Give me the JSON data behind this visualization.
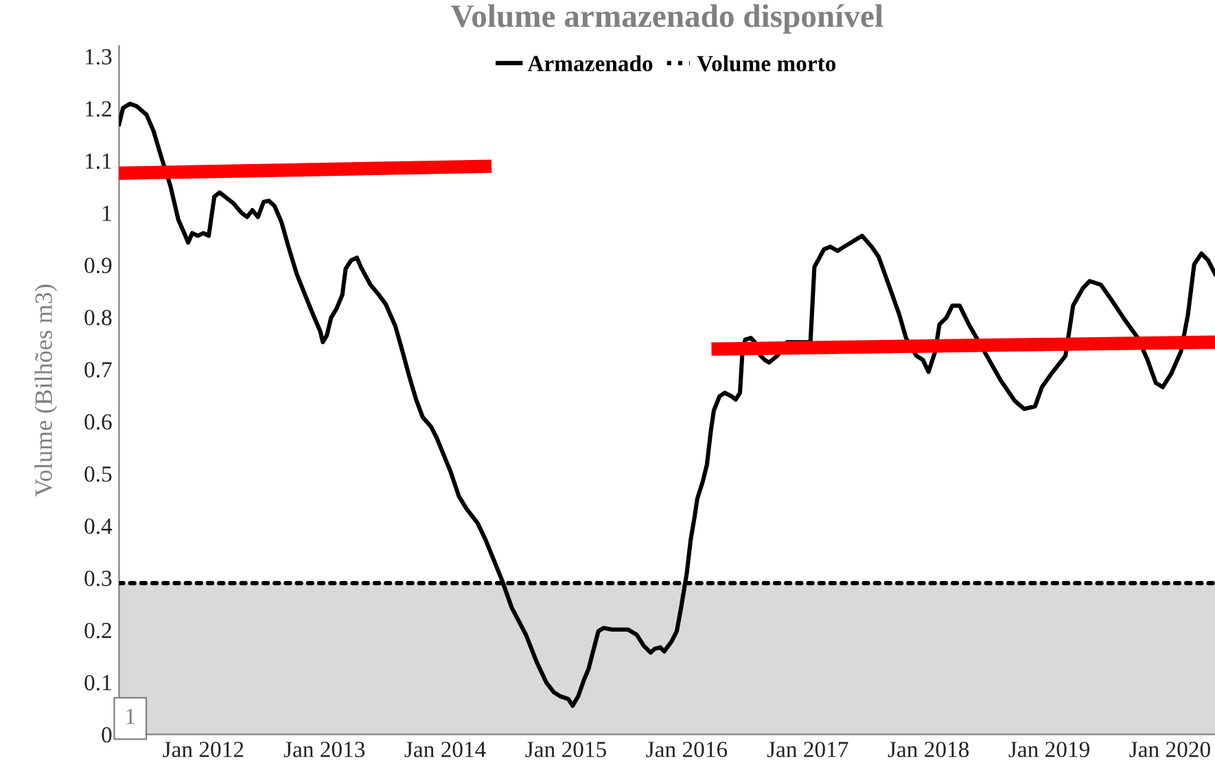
{
  "chart_data": {
    "type": "line",
    "title": "Volume armazenado disponível",
    "ylabel": "Volume (Bilhões m3)",
    "xlim": [
      "2011-04-21",
      "2020-05-16"
    ],
    "ylim": [
      0,
      1.32
    ],
    "xticks": [
      {
        "value": "2012-01-01",
        "label": "Jan 2012"
      },
      {
        "value": "2013-01-01",
        "label": "Jan 2013"
      },
      {
        "value": "2014-01-01",
        "label": "Jan 2014"
      },
      {
        "value": "2015-01-01",
        "label": "Jan 2015"
      },
      {
        "value": "2016-01-01",
        "label": "Jan 2016"
      },
      {
        "value": "2017-01-01",
        "label": "Jan 2017"
      },
      {
        "value": "2018-01-01",
        "label": "Jan 2018"
      },
      {
        "value": "2019-01-01",
        "label": "Jan 2019"
      },
      {
        "value": "2020-01-01",
        "label": "Jan 2020"
      }
    ],
    "yticks": [
      0,
      0.1,
      0.2,
      0.3,
      0.4,
      0.5,
      0.6,
      0.7,
      0.8,
      0.9,
      1,
      1.1,
      1.2,
      1.3
    ],
    "grid": false,
    "legend": "top",
    "marker": "none",
    "bands": [
      {
        "axis": "y",
        "from": 0,
        "to": 0.29,
        "color": "#d9d9d9"
      }
    ],
    "annotations": [
      "1"
    ],
    "series": [
      {
        "name": "Armazenado",
        "color": "#000000",
        "line_style": "solid",
        "x": [
          "2011-04-21",
          "2011-05-03",
          "2011-05-24",
          "2011-06-14",
          "2011-07-13",
          "2011-08-03",
          "2011-08-28",
          "2011-09-23",
          "2011-10-17",
          "2011-11-04",
          "2011-11-16",
          "2011-11-28",
          "2011-12-15",
          "2012-01-01",
          "2012-01-17",
          "2012-02-03",
          "2012-02-19",
          "2012-03-06",
          "2012-04-01",
          "2012-04-25",
          "2012-05-12",
          "2012-05-28",
          "2012-06-14",
          "2012-07-01",
          "2012-07-17",
          "2012-08-03",
          "2012-08-24",
          "2012-09-14",
          "2012-10-09",
          "2012-11-03",
          "2012-11-28",
          "2012-12-19",
          "2012-12-27",
          "2013-01-08",
          "2013-01-21",
          "2013-02-07",
          "2013-02-24",
          "2013-03-06",
          "2013-03-23",
          "2013-04-09",
          "2013-04-21",
          "2013-05-20",
          "2013-06-14",
          "2013-07-05",
          "2013-08-03",
          "2013-08-24",
          "2013-09-14",
          "2013-10-05",
          "2013-10-25",
          "2013-11-19",
          "2013-12-06",
          "2013-12-28",
          "2014-01-17",
          "2014-02-11",
          "2014-03-06",
          "2014-04-09",
          "2014-05-03",
          "2014-05-28",
          "2014-06-22",
          "2014-07-21",
          "2014-09-02",
          "2014-10-05",
          "2014-11-03",
          "2014-11-25",
          "2014-12-15",
          "2015-01-08",
          "2015-01-21",
          "2015-02-07",
          "2015-02-24",
          "2015-03-10",
          "2015-03-23",
          "2015-04-09",
          "2015-04-25",
          "2015-05-20",
          "2015-06-10",
          "2015-07-08",
          "2015-08-03",
          "2015-08-24",
          "2015-09-14",
          "2015-09-26",
          "2015-10-13",
          "2015-10-25",
          "2015-11-16",
          "2015-12-02",
          "2015-12-15",
          "2016-01-01",
          "2016-01-13",
          "2016-01-25",
          "2016-02-02",
          "2016-02-19",
          "2016-03-02",
          "2016-03-14",
          "2016-03-23",
          "2016-04-09",
          "2016-04-25",
          "2016-05-16",
          "2016-05-28",
          "2016-06-10",
          "2016-06-18",
          "2016-06-26",
          "2016-07-13",
          "2016-07-25",
          "2016-08-11",
          "2016-08-24",
          "2016-09-06",
          "2016-10-01",
          "2016-10-30",
          "2017-01-09",
          "2017-01-21",
          "2017-02-19",
          "2017-03-10",
          "2017-04-01",
          "2017-04-21",
          "2017-05-12",
          "2017-06-14",
          "2017-07-13",
          "2017-08-03",
          "2017-09-06",
          "2017-10-05",
          "2017-10-25",
          "2017-11-25",
          "2017-12-15",
          "2018-01-01",
          "2018-01-21",
          "2018-02-03",
          "2018-02-24",
          "2018-03-14",
          "2018-04-05",
          "2018-05-03",
          "2018-06-26",
          "2018-08-07",
          "2018-09-18",
          "2018-10-17",
          "2018-11-19",
          "2018-12-10",
          "2019-01-08",
          "2019-02-19",
          "2019-03-14",
          "2019-04-13",
          "2019-05-03",
          "2019-06-06",
          "2019-07-05",
          "2019-08-16",
          "2019-09-26",
          "2019-10-25",
          "2019-11-19",
          "2019-12-10",
          "2020-01-05",
          "2020-02-03",
          "2020-02-24",
          "2020-03-14",
          "2020-04-05",
          "2020-04-25",
          "2020-05-16"
        ],
        "values": [
          1.17,
          1.201,
          1.209,
          1.204,
          1.188,
          1.157,
          1.104,
          1.052,
          0.987,
          0.961,
          0.943,
          0.961,
          0.956,
          0.961,
          0.956,
          1.031,
          1.039,
          1.031,
          1.018,
          1.0,
          0.992,
          1.005,
          0.992,
          1.021,
          1.023,
          1.013,
          0.982,
          0.935,
          0.883,
          0.843,
          0.804,
          0.773,
          0.752,
          0.765,
          0.799,
          0.817,
          0.843,
          0.893,
          0.909,
          0.914,
          0.896,
          0.862,
          0.843,
          0.825,
          0.783,
          0.736,
          0.687,
          0.642,
          0.608,
          0.59,
          0.569,
          0.535,
          0.504,
          0.457,
          0.433,
          0.405,
          0.373,
          0.334,
          0.295,
          0.243,
          0.191,
          0.138,
          0.099,
          0.081,
          0.073,
          0.068,
          0.055,
          0.073,
          0.104,
          0.125,
          0.157,
          0.198,
          0.204,
          0.201,
          0.201,
          0.201,
          0.191,
          0.17,
          0.157,
          0.164,
          0.167,
          0.159,
          0.178,
          0.198,
          0.243,
          0.308,
          0.373,
          0.418,
          0.452,
          0.486,
          0.517,
          0.582,
          0.621,
          0.648,
          0.655,
          0.648,
          0.642,
          0.655,
          0.739,
          0.757,
          0.76,
          0.752,
          0.726,
          0.718,
          0.713,
          0.726,
          0.752,
          0.752,
          0.896,
          0.93,
          0.935,
          0.927,
          0.935,
          0.943,
          0.956,
          0.935,
          0.916,
          0.856,
          0.804,
          0.76,
          0.726,
          0.718,
          0.695,
          0.734,
          0.786,
          0.799,
          0.822,
          0.822,
          0.786,
          0.726,
          0.679,
          0.64,
          0.624,
          0.629,
          0.666,
          0.692,
          0.726,
          0.822,
          0.856,
          0.869,
          0.862,
          0.836,
          0.796,
          0.76,
          0.718,
          0.674,
          0.666,
          0.692,
          0.734,
          0.804,
          0.901,
          0.922,
          0.909,
          0.883
        ]
      },
      {
        "name": "Volume morto",
        "color": "#000000",
        "line_style": "dotted",
        "x": [
          "2011-04-21",
          "2020-05-16"
        ],
        "values": [
          0.29,
          0.29
        ]
      },
      {
        "color": "#ff0000",
        "line_style": "solid",
        "x": [
          "2011-04-21",
          "2014-05-01"
        ],
        "values": [
          1.076,
          1.089
        ]
      },
      {
        "color": "#ff0000",
        "line_style": "solid",
        "x": [
          "2016-04-05",
          "2020-05-16"
        ],
        "values": [
          0.739,
          0.752
        ]
      }
    ]
  }
}
